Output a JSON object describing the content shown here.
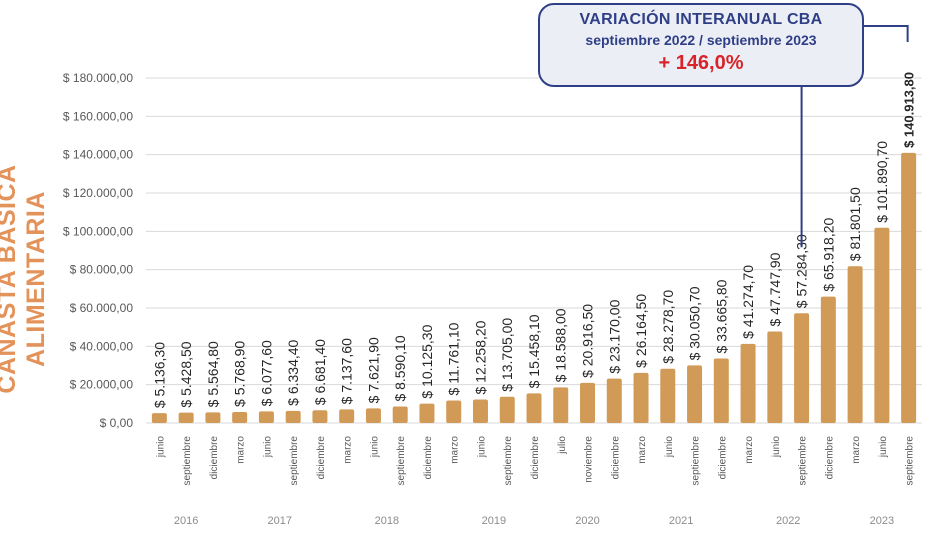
{
  "side_label": "CANASTA BÁSICA ALIMENTARIA",
  "callout": {
    "title": "VARIACIÓN INTERANUAL CBA",
    "period": "septiembre 2022 / septiembre 2023",
    "value": "+ 146,0%"
  },
  "colors": {
    "bar": "#d29a57",
    "callout_border": "#2f3f86",
    "callout_value": "#d8232a",
    "side_label": "#e3935a"
  },
  "chart_data": {
    "type": "bar",
    "title": "",
    "ylabel": "CANASTA BÁSICA ALIMENTARIA",
    "ylim": [
      0,
      180000
    ],
    "yticks": [
      0,
      20000,
      40000,
      60000,
      80000,
      100000,
      120000,
      140000,
      160000,
      180000
    ],
    "ytick_labels": [
      "$ 0,00",
      "$ 20.000,00",
      "$ 40.000,00",
      "$ 60.000,00",
      "$ 80.000,00",
      "$ 100.000,00",
      "$ 120.000,00",
      "$ 140.000,00",
      "$ 160.000,00",
      "$ 180.000,00"
    ],
    "grid": true,
    "categories": [
      "junio",
      "septiembre",
      "diciembre",
      "marzo",
      "junio",
      "septiembre",
      "diciembre",
      "marzo",
      "junio",
      "septiembre",
      "diciembre",
      "marzo",
      "junio",
      "septiembre",
      "diciembre",
      "julio",
      "noviembre",
      "diciembre",
      "marzo",
      "junio",
      "septiembre",
      "diciembre",
      "marzo",
      "junio",
      "septiembre",
      "diciembre",
      "marzo",
      "junio",
      "septiembre"
    ],
    "values": [
      5136.3,
      5428.5,
      5564.8,
      5768.9,
      6077.6,
      6334.4,
      6681.4,
      7137.6,
      7621.9,
      8590.1,
      10125.3,
      11761.1,
      12258.2,
      13705.0,
      15458.1,
      18588.0,
      20916.5,
      23170.0,
      26164.5,
      28278.7,
      30050.7,
      33665.8,
      41274.7,
      47747.9,
      57284.3,
      65918.2,
      81801.5,
      101890.7,
      140913.8
    ],
    "value_labels": [
      "$ 5.136,30",
      "$ 5.428,50",
      "$ 5.564,80",
      "$ 5.768,90",
      "$ 6.077,60",
      "$ 6.334,40",
      "$ 6.681,40",
      "$ 7.137,60",
      "$ 7.621,90",
      "$ 8.590,10",
      "$ 10.125,30",
      "$ 11.761,10",
      "$ 12.258,20",
      "$ 13.705,00",
      "$ 15.458,10",
      "$ 18.588,00",
      "$ 20.916,50",
      "$ 23.170,00",
      "$ 26.164,50",
      "$ 28.278,70",
      "$ 30.050,70",
      "$ 33.665,80",
      "$ 41.274,70",
      "$ 47.747,90",
      "$ 57.284,30",
      "$ 65.918,20",
      "$ 81.801,50",
      "$ 101.890,70",
      "$ 140.913,80"
    ],
    "years": [
      {
        "label": "2016",
        "from": 0,
        "to": 2
      },
      {
        "label": "2017",
        "from": 3,
        "to": 6
      },
      {
        "label": "2018",
        "from": 7,
        "to": 10
      },
      {
        "label": "2019",
        "from": 11,
        "to": 14
      },
      {
        "label": "2020",
        "from": 15,
        "to": 17
      },
      {
        "label": "2021",
        "from": 18,
        "to": 21
      },
      {
        "label": "2022",
        "from": 22,
        "to": 25
      },
      {
        "label": "2023",
        "from": 26,
        "to": 28
      }
    ],
    "highlighted_index": 28
  }
}
